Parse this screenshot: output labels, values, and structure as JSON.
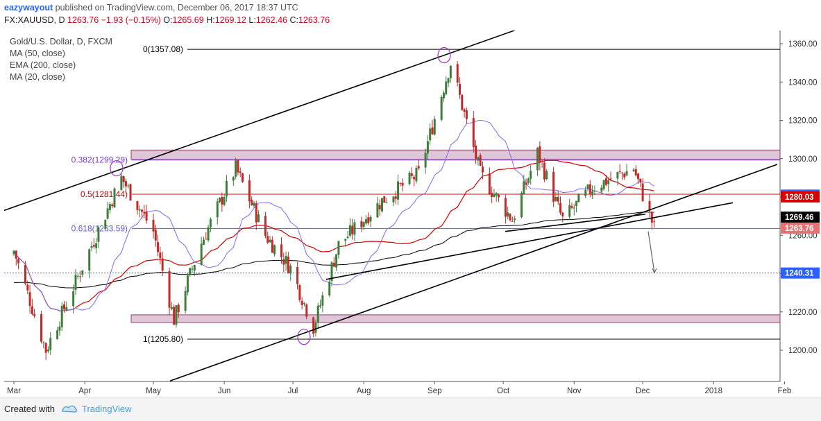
{
  "header": {
    "author": "eazywayout",
    "published_text": "published on TradingView.com, December 06, 2017 18:37 UTC",
    "symbol": "FX:XAUUSD, D",
    "last": "1263.76",
    "change": "−1.93 (−0.15%)",
    "o_label": "O:",
    "o": "1265.69",
    "h_label": "H:",
    "h": "1269.12",
    "l_label": "L:",
    "l": "1262.46",
    "c_label": "C:",
    "c": "1263.76"
  },
  "legend": {
    "title": "Gold/U.S. Dollar, D, FXCM",
    "items": [
      "MA (50, close)",
      "EMA (200, close)",
      "MA (20, close)"
    ]
  },
  "footer": {
    "created_with": "Created with",
    "brand": "TradingView"
  },
  "colors": {
    "up": "#3e7d3b",
    "down": "#c62828",
    "ma50": "#d50000",
    "ema200": "#000000",
    "ma20": "#7a6cf0",
    "zone_fill": "#d4b3c8",
    "zone_stroke": "#8e3f6e"
  },
  "chart_data": {
    "type": "candlestick",
    "x_ticks": [
      "Mar",
      "Apr",
      "May",
      "Jun",
      "Jul",
      "Aug",
      "Sep",
      "Oct",
      "Nov",
      "Dec",
      "2018",
      "Feb"
    ],
    "y_ticks": [
      "1200.00",
      "1220.00",
      "1240.00",
      "1260.00",
      "1280.00",
      "1300.00",
      "1320.00",
      "1340.00",
      "1360.00"
    ],
    "ylim": [
      1185,
      1365
    ],
    "fib_levels": [
      {
        "label": "0(1357.08)",
        "value": 1357.08
      },
      {
        "label": "0.382(1299.29)",
        "value": 1299.29
      },
      {
        "label": "0.5(1281.44)",
        "value": 1281.44
      },
      {
        "label": "0.618(1263.59)",
        "value": 1263.59
      },
      {
        "label": "1(1205.80)",
        "value": 1205.8
      }
    ],
    "zones": [
      {
        "from": 1299.5,
        "to": 1304.5
      },
      {
        "from": 1214.5,
        "to": 1218.5
      }
    ],
    "dotted_target": 1240.31,
    "price_tags": [
      {
        "label": "1280.96",
        "value": 1280.96,
        "color": "#2962ff"
      },
      {
        "label": "1280.03",
        "value": 1280.03,
        "color": "#d50000"
      },
      {
        "label": "1269.46",
        "value": 1269.46,
        "color": "#000000"
      },
      {
        "label": "1263.76",
        "value": 1263.76,
        "color": "#e57373"
      },
      {
        "label": "1240.31",
        "value": 1240.31,
        "color": "#2962ff"
      }
    ],
    "anchors": [
      {
        "date": "2017-03-01",
        "close": 1252
      },
      {
        "date": "2017-03-15",
        "close": 1200
      },
      {
        "date": "2017-04-03",
        "close": 1252
      },
      {
        "date": "2017-04-17",
        "close": 1290
      },
      {
        "date": "2017-05-01",
        "close": 1262
      },
      {
        "date": "2017-05-10",
        "close": 1216
      },
      {
        "date": "2017-05-22",
        "close": 1256
      },
      {
        "date": "2017-06-06",
        "close": 1295
      },
      {
        "date": "2017-06-19",
        "close": 1260
      },
      {
        "date": "2017-06-30",
        "close": 1243
      },
      {
        "date": "2017-07-10",
        "close": 1212
      },
      {
        "date": "2017-07-21",
        "close": 1255
      },
      {
        "date": "2017-08-09",
        "close": 1278
      },
      {
        "date": "2017-08-25",
        "close": 1292
      },
      {
        "date": "2017-09-08",
        "close": 1350
      },
      {
        "date": "2017-09-21",
        "close": 1292
      },
      {
        "date": "2017-10-05",
        "close": 1268
      },
      {
        "date": "2017-10-16",
        "close": 1303
      },
      {
        "date": "2017-10-27",
        "close": 1268
      },
      {
        "date": "2017-11-09",
        "close": 1285
      },
      {
        "date": "2017-11-27",
        "close": 1295
      },
      {
        "date": "2017-12-06",
        "close": 1263.76
      }
    ]
  }
}
